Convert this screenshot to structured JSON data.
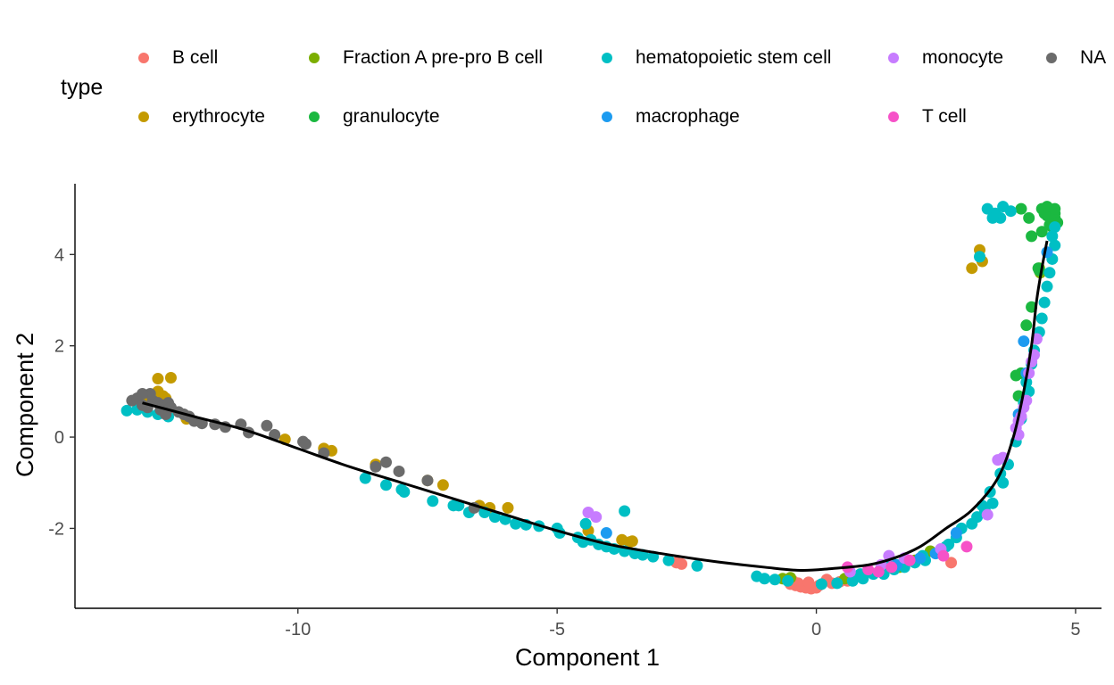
{
  "chart_data": {
    "type": "scatter",
    "xlabel": "Component 1",
    "ylabel": "Component 2",
    "xlim": [
      -14.3,
      5.5
    ],
    "ylim": [
      -3.75,
      5.55
    ],
    "x_ticks": [
      -10,
      -5,
      0,
      5
    ],
    "y_ticks": [
      -2,
      0,
      2,
      4
    ],
    "grid": false,
    "legend": {
      "title": "type",
      "placement": "top",
      "entries": [
        {
          "name": "B cell",
          "color": "#F8766D"
        },
        {
          "name": "erythrocyte",
          "color": "#C49A00"
        },
        {
          "name": "Fraction A pre-pro B cell",
          "color": "#7CAE00"
        },
        {
          "name": "granulocyte",
          "color": "#1BB840"
        },
        {
          "name": "hematopoietic stem cell",
          "color": "#00BFC4"
        },
        {
          "name": "macrophage",
          "color": "#1C9BF0"
        },
        {
          "name": "monocyte",
          "color": "#C77CFF"
        },
        {
          "name": "T cell",
          "color": "#F652C8"
        },
        {
          "name": "NA",
          "color": "#6B6B6B"
        }
      ]
    },
    "trajectory": [
      [
        -13.0,
        0.75
      ],
      [
        -12.0,
        0.45
      ],
      [
        -11.0,
        0.15
      ],
      [
        -10.0,
        -0.25
      ],
      [
        -9.0,
        -0.65
      ],
      [
        -8.0,
        -1.0
      ],
      [
        -7.0,
        -1.35
      ],
      [
        -6.0,
        -1.7
      ],
      [
        -5.0,
        -2.05
      ],
      [
        -4.0,
        -2.35
      ],
      [
        -3.0,
        -2.55
      ],
      [
        -2.0,
        -2.72
      ],
      [
        -1.0,
        -2.85
      ],
      [
        -0.3,
        -2.92
      ],
      [
        0.3,
        -2.88
      ],
      [
        1.0,
        -2.8
      ],
      [
        1.5,
        -2.65
      ],
      [
        2.0,
        -2.4
      ],
      [
        2.5,
        -2.0
      ],
      [
        3.0,
        -1.6
      ],
      [
        3.5,
        -0.9
      ],
      [
        3.8,
        0.0
      ],
      [
        4.0,
        1.0
      ],
      [
        4.15,
        2.0
      ],
      [
        4.25,
        3.0
      ],
      [
        4.35,
        3.7
      ],
      [
        4.45,
        4.3
      ]
    ],
    "series": [
      {
        "name": "B cell",
        "points": [
          [
            -0.5,
            -3.22
          ],
          [
            -0.4,
            -3.25
          ],
          [
            -0.3,
            -3.28
          ],
          [
            -0.2,
            -3.3
          ],
          [
            -0.1,
            -3.32
          ],
          [
            0.0,
            -3.3
          ],
          [
            -0.35,
            -3.2
          ],
          [
            -0.15,
            -3.18
          ],
          [
            0.05,
            -3.25
          ],
          [
            0.3,
            -3.2
          ],
          [
            0.45,
            -3.17
          ],
          [
            0.6,
            -3.15
          ],
          [
            -0.45,
            -3.15
          ],
          [
            0.2,
            -3.12
          ],
          [
            2.6,
            -2.75
          ],
          [
            -2.7,
            -2.75
          ],
          [
            -2.6,
            -2.78
          ]
        ]
      },
      {
        "name": "erythrocyte",
        "points": [
          [
            -13.0,
            0.85
          ],
          [
            -12.95,
            0.75
          ],
          [
            -12.85,
            0.9
          ],
          [
            -12.75,
            0.95
          ],
          [
            -12.7,
            1.0
          ],
          [
            -12.6,
            0.9
          ],
          [
            -12.55,
            0.85
          ],
          [
            -12.9,
            0.7
          ],
          [
            -12.7,
            1.28
          ],
          [
            -12.45,
            1.3
          ],
          [
            -12.15,
            0.4
          ],
          [
            -10.25,
            -0.05
          ],
          [
            -9.5,
            -0.25
          ],
          [
            -9.35,
            -0.3
          ],
          [
            -8.5,
            -0.6
          ],
          [
            -7.5,
            -0.95
          ],
          [
            -7.2,
            -1.05
          ],
          [
            -6.5,
            -1.5
          ],
          [
            -6.3,
            -1.55
          ],
          [
            -5.95,
            -1.55
          ],
          [
            -3.75,
            -2.25
          ],
          [
            -3.6,
            -2.3
          ],
          [
            -3.55,
            -2.28
          ],
          [
            -4.4,
            -2.05
          ],
          [
            3.2,
            3.85
          ],
          [
            3.0,
            3.7
          ],
          [
            3.15,
            4.1
          ]
        ]
      },
      {
        "name": "Fraction A pre-pro B cell",
        "points": [
          [
            -0.65,
            -3.1
          ],
          [
            -0.5,
            -3.08
          ],
          [
            0.55,
            -3.1
          ],
          [
            0.9,
            -3.05
          ],
          [
            1.3,
            -2.95
          ],
          [
            1.6,
            -2.85
          ],
          [
            1.9,
            -2.7
          ],
          [
            4.3,
            3.7
          ],
          [
            4.32,
            3.6
          ],
          [
            2.2,
            -2.5
          ]
        ]
      },
      {
        "name": "granulocyte",
        "points": [
          [
            4.5,
            5.0
          ],
          [
            4.55,
            4.95
          ],
          [
            4.6,
            4.9
          ],
          [
            4.45,
            4.85
          ],
          [
            4.55,
            4.75
          ],
          [
            4.6,
            4.8
          ],
          [
            4.65,
            4.7
          ],
          [
            4.5,
            4.65
          ],
          [
            4.4,
            4.9
          ],
          [
            4.35,
            5.0
          ],
          [
            4.45,
            5.05
          ],
          [
            4.6,
            5.0
          ],
          [
            4.55,
            4.6
          ],
          [
            4.1,
            4.8
          ],
          [
            4.15,
            4.4
          ],
          [
            3.95,
            5.0
          ],
          [
            4.35,
            4.5
          ],
          [
            4.3,
            3.65
          ],
          [
            4.28,
            3.7
          ],
          [
            4.05,
            2.45
          ],
          [
            3.95,
            1.4
          ],
          [
            3.85,
            1.35
          ],
          [
            4.15,
            2.85
          ],
          [
            3.9,
            0.9
          ]
        ]
      },
      {
        "name": "hematopoietic stem cell",
        "points": [
          [
            -13.3,
            0.58
          ],
          [
            -13.1,
            0.6
          ],
          [
            -12.9,
            0.55
          ],
          [
            -12.7,
            0.5
          ],
          [
            -12.6,
            0.6
          ],
          [
            -12.5,
            0.45
          ],
          [
            -8.7,
            -0.9
          ],
          [
            -8.3,
            -1.05
          ],
          [
            -8.0,
            -1.15
          ],
          [
            -7.95,
            -1.2
          ],
          [
            -7.4,
            -1.4
          ],
          [
            -7.0,
            -1.5
          ],
          [
            -6.9,
            -1.5
          ],
          [
            -6.7,
            -1.65
          ],
          [
            -6.4,
            -1.65
          ],
          [
            -6.2,
            -1.75
          ],
          [
            -6.0,
            -1.8
          ],
          [
            -5.8,
            -1.9
          ],
          [
            -5.6,
            -1.92
          ],
          [
            -5.35,
            -1.95
          ],
          [
            -5.0,
            -2.0
          ],
          [
            -4.95,
            -2.1
          ],
          [
            -4.6,
            -2.2
          ],
          [
            -4.5,
            -2.3
          ],
          [
            -4.35,
            -2.25
          ],
          [
            -4.2,
            -2.35
          ],
          [
            -4.05,
            -2.4
          ],
          [
            -3.9,
            -2.45
          ],
          [
            -3.7,
            -2.5
          ],
          [
            -3.5,
            -2.55
          ],
          [
            -3.35,
            -2.58
          ],
          [
            -3.15,
            -2.62
          ],
          [
            -2.85,
            -2.7
          ],
          [
            -2.3,
            -2.82
          ],
          [
            -4.45,
            -1.9
          ],
          [
            -3.7,
            -1.62
          ],
          [
            -1.15,
            -3.05
          ],
          [
            -1.0,
            -3.1
          ],
          [
            -0.8,
            -3.12
          ],
          [
            -0.55,
            -3.15
          ],
          [
            0.1,
            -3.22
          ],
          [
            0.4,
            -3.2
          ],
          [
            0.7,
            -3.15
          ],
          [
            0.9,
            -3.1
          ],
          [
            1.1,
            -3.0
          ],
          [
            1.3,
            -3.0
          ],
          [
            1.5,
            -2.9
          ],
          [
            1.7,
            -2.85
          ],
          [
            1.9,
            -2.75
          ],
          [
            2.1,
            -2.7
          ],
          [
            2.3,
            -2.55
          ],
          [
            2.5,
            -2.4
          ],
          [
            2.7,
            -2.2
          ],
          [
            2.8,
            -2.0
          ],
          [
            3.0,
            -1.9
          ],
          [
            3.1,
            -1.75
          ],
          [
            3.25,
            -1.6
          ],
          [
            3.4,
            -1.45
          ],
          [
            3.6,
            -1.0
          ],
          [
            3.7,
            -0.6
          ],
          [
            3.85,
            -0.1
          ],
          [
            3.95,
            0.4
          ],
          [
            4.0,
            0.75
          ],
          [
            4.05,
            1.2
          ],
          [
            4.15,
            1.6
          ],
          [
            4.2,
            1.9
          ],
          [
            4.3,
            2.3
          ],
          [
            4.35,
            2.6
          ],
          [
            4.4,
            2.95
          ],
          [
            4.45,
            3.3
          ],
          [
            4.5,
            3.6
          ],
          [
            4.55,
            3.9
          ],
          [
            4.6,
            4.2
          ],
          [
            4.6,
            4.6
          ],
          [
            4.55,
            4.4
          ],
          [
            3.3,
            5.0
          ],
          [
            3.45,
            4.9
          ],
          [
            3.55,
            4.8
          ],
          [
            3.6,
            5.05
          ],
          [
            3.75,
            4.95
          ],
          [
            3.4,
            4.8
          ],
          [
            3.15,
            3.95
          ],
          [
            4.1,
            1.0
          ],
          [
            3.35,
            -1.2
          ],
          [
            2.05,
            -2.6
          ],
          [
            1.45,
            -2.75
          ],
          [
            0.85,
            -3.0
          ],
          [
            2.55,
            -2.35
          ],
          [
            3.2,
            -1.5
          ],
          [
            3.55,
            -0.8
          ]
        ]
      },
      {
        "name": "macrophage",
        "points": [
          [
            -4.05,
            -2.1
          ],
          [
            1.2,
            -2.95
          ],
          [
            1.55,
            -2.8
          ],
          [
            2.0,
            -2.65
          ],
          [
            2.3,
            -2.55
          ],
          [
            2.7,
            -2.1
          ],
          [
            4.0,
            2.1
          ],
          [
            4.05,
            1.4
          ],
          [
            3.9,
            0.5
          ],
          [
            4.45,
            4.05
          ]
        ]
      },
      {
        "name": "monocyte",
        "points": [
          [
            -4.4,
            -1.65
          ],
          [
            -4.25,
            -1.75
          ],
          [
            0.65,
            -2.95
          ],
          [
            1.25,
            -2.8
          ],
          [
            1.4,
            -2.6
          ],
          [
            1.7,
            -2.65
          ],
          [
            2.4,
            -2.45
          ],
          [
            3.3,
            -1.7
          ],
          [
            3.5,
            -0.5
          ],
          [
            3.6,
            -0.45
          ],
          [
            3.85,
            0.2
          ],
          [
            3.9,
            0.35
          ],
          [
            3.95,
            0.45
          ],
          [
            4.0,
            0.65
          ],
          [
            4.05,
            0.8
          ],
          [
            3.9,
            0.05
          ],
          [
            4.1,
            1.4
          ],
          [
            4.15,
            1.65
          ],
          [
            4.2,
            1.8
          ],
          [
            4.25,
            2.15
          ]
        ]
      },
      {
        "name": "T cell",
        "points": [
          [
            0.6,
            -2.85
          ],
          [
            1.0,
            -2.9
          ],
          [
            1.2,
            -2.95
          ],
          [
            1.45,
            -2.85
          ],
          [
            1.8,
            -2.7
          ],
          [
            2.45,
            -2.6
          ],
          [
            2.9,
            -2.4
          ]
        ]
      },
      {
        "name": "NA",
        "points": [
          [
            -13.2,
            0.8
          ],
          [
            -13.1,
            0.85
          ],
          [
            -13.0,
            0.7
          ],
          [
            -12.9,
            0.65
          ],
          [
            -12.8,
            0.8
          ],
          [
            -12.7,
            0.75
          ],
          [
            -12.65,
            0.6
          ],
          [
            -12.6,
            0.7
          ],
          [
            -12.5,
            0.75
          ],
          [
            -12.45,
            0.65
          ],
          [
            -12.55,
            0.5
          ],
          [
            -12.3,
            0.55
          ],
          [
            -12.2,
            0.5
          ],
          [
            -12.1,
            0.45
          ],
          [
            -12.0,
            0.35
          ],
          [
            -11.85,
            0.3
          ],
          [
            -11.6,
            0.28
          ],
          [
            -11.4,
            0.22
          ],
          [
            -11.1,
            0.28
          ],
          [
            -10.95,
            0.1
          ],
          [
            -10.6,
            0.25
          ],
          [
            -10.45,
            0.05
          ],
          [
            -9.9,
            -0.1
          ],
          [
            -9.85,
            -0.15
          ],
          [
            -9.5,
            -0.35
          ],
          [
            -8.5,
            -0.65
          ],
          [
            -8.3,
            -0.55
          ],
          [
            -8.05,
            -0.75
          ],
          [
            -7.5,
            -0.95
          ],
          [
            -6.6,
            -1.55
          ],
          [
            -12.85,
            0.95
          ],
          [
            -13.0,
            0.95
          ]
        ]
      }
    ]
  }
}
